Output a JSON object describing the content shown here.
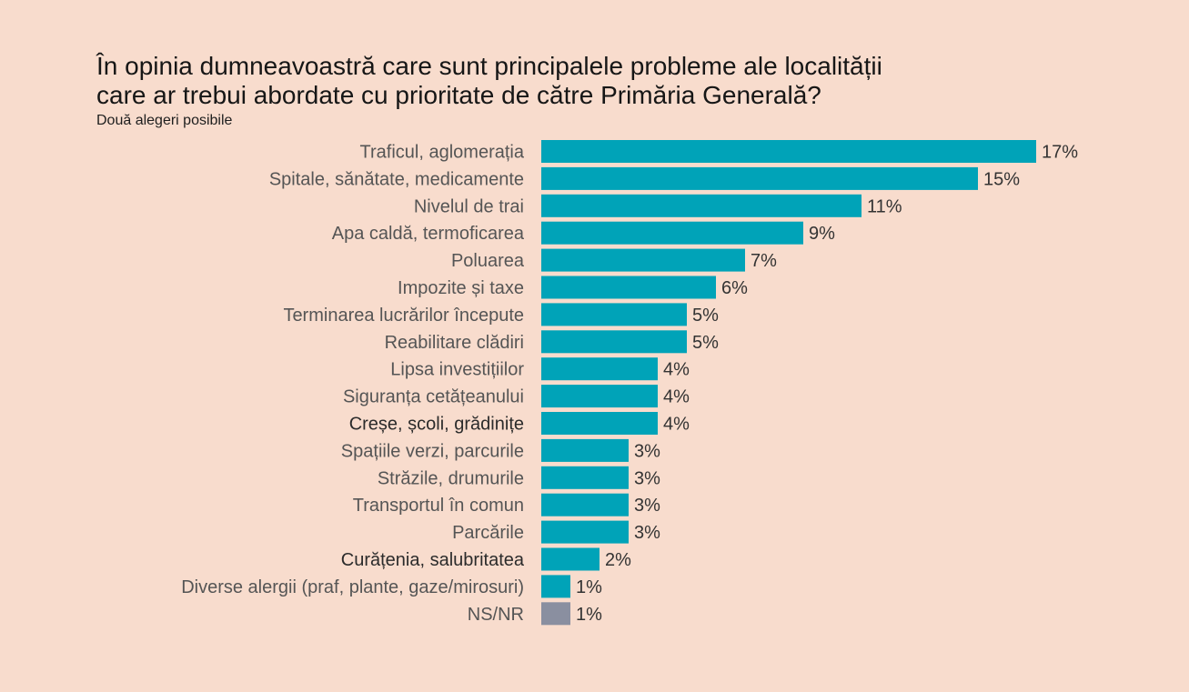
{
  "chart_data": {
    "type": "bar",
    "orientation": "horizontal",
    "title_lines": [
      "În opinia dumneavoastră care sunt principalele probleme ale localității",
      "care ar trebui abordate cu prioritate de către Primăria Generală?"
    ],
    "subtitle": "Două alegeri posibile",
    "categories": [
      "Traficul, aglomerația",
      "Spitale, sănătate, medicamente",
      "Nivelul de trai",
      "Apa caldă, termoficarea",
      "Poluarea",
      "Impozite și taxe",
      "Terminarea lucrărilor începute",
      "Reabilitare clădiri",
      "Lipsa investițiilor",
      "Siguranța cetățeanului",
      "Creșe, școli, grădinițe",
      "Spațiile verzi, parcurile",
      "Străzile, drumurile",
      "Transportul în comun",
      "Parcările",
      "Curățenia, salubritatea",
      "Diverse alergii (praf, plante, gaze/mirosuri)",
      "NS/NR"
    ],
    "values": [
      17,
      15,
      11,
      9,
      7,
      6,
      5,
      5,
      4,
      4,
      4,
      3,
      3,
      3,
      3,
      2,
      1,
      1
    ],
    "value_labels": [
      "17%",
      "15%",
      "11%",
      "9%",
      "7%",
      "6%",
      "5%",
      "5%",
      "4%",
      "4%",
      "4%",
      "3%",
      "3%",
      "3%",
      "3%",
      "2%",
      "1%",
      "1%"
    ],
    "unit": "%",
    "xlim": [
      0,
      17
    ],
    "grid": false,
    "legend": "none",
    "colors": {
      "background": "#f8dccd",
      "bar": "#00a3b8",
      "bar_nsnr": "#8a8fa0"
    }
  }
}
